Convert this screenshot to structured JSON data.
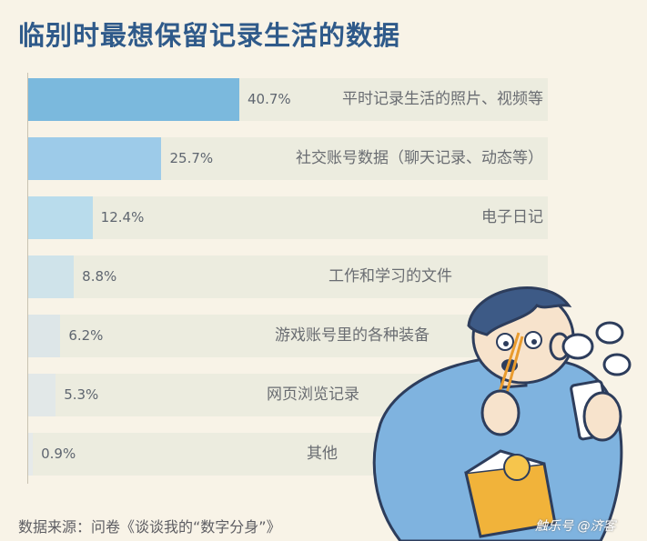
{
  "title": "临别时最想保留记录生活的数据",
  "source": "数据来源：问卷《谈谈我的“数字分身”》",
  "watermark": "触乐号 @济客",
  "colors": {
    "title": "#2f5a8a",
    "track": "#ececdf",
    "fills": [
      "#7bb9dd",
      "#9dcbe9",
      "#b9dcec",
      "#cfe3ea",
      "#dde6e8",
      "#e2e8e8",
      "#e6eaea"
    ]
  },
  "chart_data": {
    "type": "bar",
    "orientation": "horizontal",
    "title": "临别时最想保留记录生活的数据",
    "categories": [
      "平时记录生活的照片、视频等",
      "社交账号数据（聊天记录、动态等）",
      "电子日记",
      "工作和学习的文件",
      "游戏账号里的各种装备",
      "网页浏览记录",
      "其他"
    ],
    "values": [
      40.7,
      25.7,
      12.4,
      8.8,
      6.2,
      5.3,
      0.9
    ],
    "labels": [
      "40.7%",
      "25.7%",
      "12.4%",
      "8.8%",
      "6.2%",
      "5.3%",
      "0.9%"
    ],
    "unit": "%",
    "xlim": [
      0,
      100
    ],
    "grid": false,
    "legend": "none"
  }
}
